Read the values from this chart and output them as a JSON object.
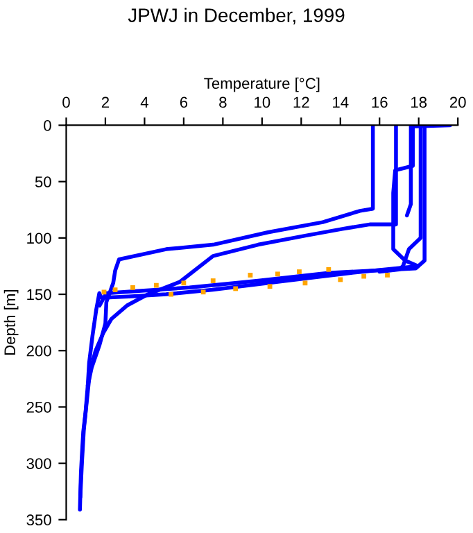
{
  "chart_data": {
    "type": "line",
    "title": "JPWJ in December, 1999",
    "xlabel": "Temperature [°C]",
    "ylabel": "Depth [m]",
    "xlim": [
      0,
      20
    ],
    "xticks": [
      0,
      2,
      4,
      6,
      8,
      10,
      12,
      14,
      16,
      18,
      20
    ],
    "ylim": [
      350,
      0
    ],
    "yticks": [
      0,
      50,
      100,
      150,
      200,
      250,
      300,
      350
    ],
    "grid": false,
    "line_style": "solid",
    "series": [
      {
        "color": "#0000ff",
        "x": [
          15.66,
          15.66,
          15.0,
          13.1,
          10.3,
          7.5,
          5.1,
          2.7,
          2.5,
          2.4,
          2.05,
          2.0,
          1.7,
          1.3,
          1.1,
          0.98,
          0.87,
          0.8,
          0.75,
          0.7
        ],
        "values": [
          0,
          74,
          76,
          86,
          95,
          106,
          110,
          119,
          129,
          140,
          157,
          176,
          195,
          215,
          231,
          256,
          272,
          293,
          309,
          341
        ]
      },
      {
        "color": "#0000ff",
        "x": [
          16.84,
          16.84,
          15.5,
          14.1,
          12.2,
          9.8,
          7.5,
          5.8,
          4.17,
          3.1,
          2.3,
          1.9,
          1.5,
          1.2,
          1.05,
          0.9,
          0.8,
          0.72
        ],
        "values": [
          0,
          88,
          88,
          92,
          98,
          106,
          116,
          139,
          150,
          160,
          172,
          184,
          200,
          220,
          245,
          270,
          300,
          330
        ]
      },
      {
        "color": "#0000ff",
        "x": [
          17.7,
          17.7,
          16.8,
          16.7,
          16.7,
          17.3,
          17.97,
          14.55,
          11.25,
          7.47,
          5.1,
          3.2,
          1.8,
          1.69,
          1.53,
          1.34,
          1.17,
          1.1
        ],
        "values": [
          0,
          36,
          40,
          60,
          110,
          120,
          125,
          131,
          138,
          146,
          150,
          152,
          153,
          149,
          164,
          187,
          211,
          231
        ]
      },
      {
        "color": "#0000ff",
        "x": [
          18.3,
          18.3,
          17.85,
          13.4,
          9.8,
          6.3,
          3.7,
          2.05,
          1.7
        ],
        "values": [
          0,
          120,
          127,
          131,
          138,
          144,
          147,
          149,
          160
        ]
      },
      {
        "color": "#0000ff",
        "x": [
          18.1,
          18.1,
          17.5,
          17.2,
          17.0,
          16.0
        ],
        "values": [
          0,
          100,
          110,
          125,
          128,
          130
        ]
      },
      {
        "color": "#0000ff",
        "x": [
          19.6,
          17.6,
          17.6,
          17.4
        ],
        "values": [
          0,
          1,
          70,
          80
        ]
      },
      {
        "type": "scatter",
        "color": "#ffa500",
        "x": [
          13.4,
          11.9,
          10.8,
          9.4,
          7.5,
          6.0,
          4.6,
          3.4,
          2.5,
          1.93
        ],
        "values": [
          128,
          130,
          132,
          133,
          138,
          140,
          142,
          144,
          146,
          148
        ]
      },
      {
        "type": "scatter",
        "color": "#ffa500",
        "x": [
          16.4,
          15.2,
          14.0,
          12.2,
          10.4,
          8.65,
          7.0,
          5.35
        ],
        "values": [
          133,
          134,
          137,
          140,
          143,
          145,
          148,
          150
        ]
      }
    ]
  }
}
